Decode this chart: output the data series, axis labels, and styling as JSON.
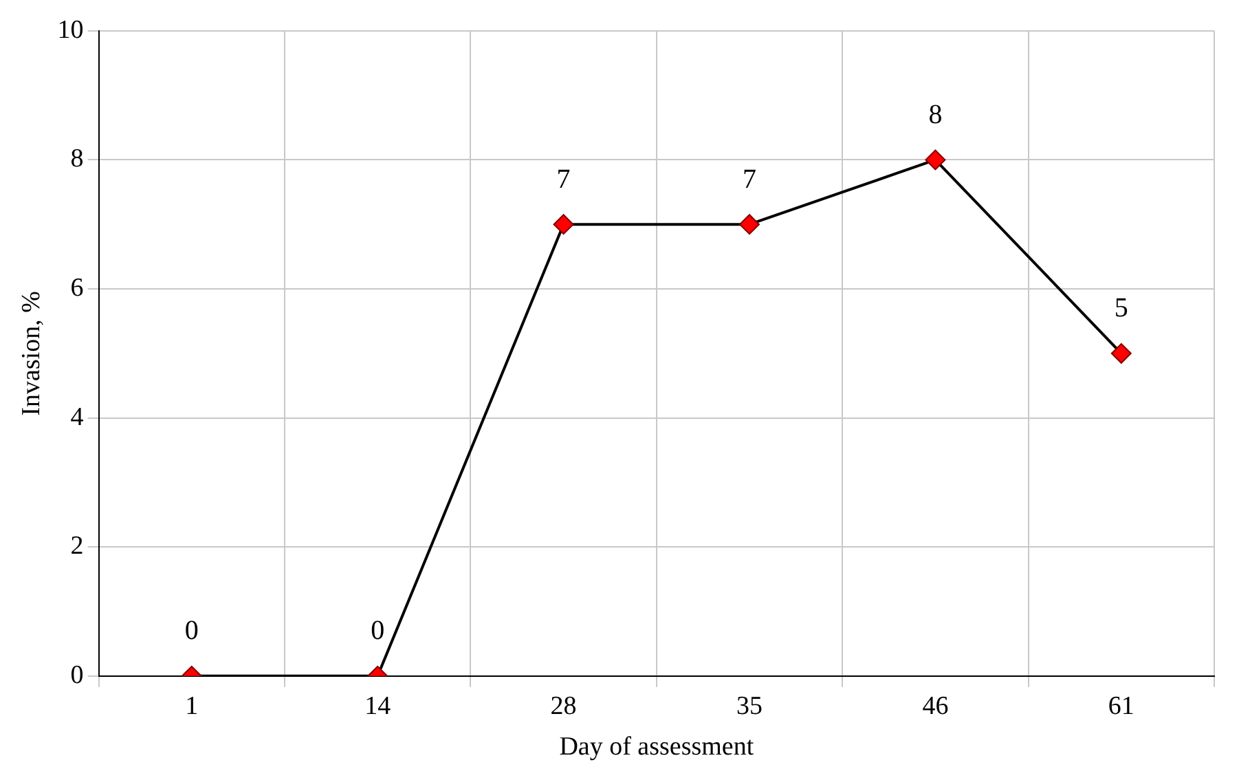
{
  "chart_data": {
    "type": "line",
    "xlabel": "Day of assessment",
    "ylabel": "Invasion, %",
    "categories": [
      "1",
      "14",
      "28",
      "35",
      "46",
      "61"
    ],
    "series": [
      {
        "color": "#000000",
        "colors": [
          "#ff0000",
          "#ff0000",
          "#ff0000",
          "#ff0000",
          "#ff0000",
          "#ff0000"
        ],
        "values": [
          0,
          0,
          7,
          7,
          8,
          5
        ]
      }
    ],
    "ylim": [
      0,
      10
    ],
    "yticks": [
      0,
      2,
      4,
      6,
      8,
      10
    ],
    "grid": true,
    "legend": false,
    "marker": "diamond",
    "line_style": "solid",
    "data_labels": true
  }
}
